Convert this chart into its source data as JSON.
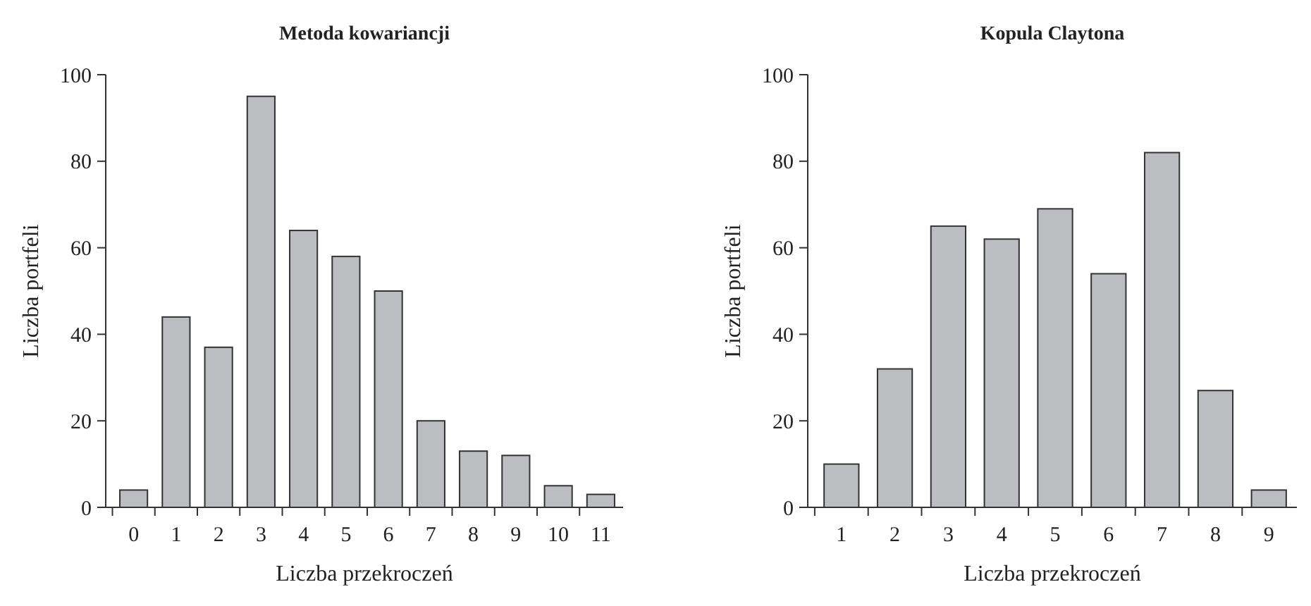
{
  "chart_data": [
    {
      "type": "bar",
      "title": "Metoda kowariancji",
      "xlabel": "Liczba przekroczeń",
      "ylabel": "Liczba portfeli",
      "categories": [
        "0",
        "1",
        "2",
        "3",
        "4",
        "5",
        "6",
        "7",
        "8",
        "9",
        "10",
        "11"
      ],
      "values": [
        4,
        44,
        37,
        95,
        64,
        58,
        50,
        20,
        13,
        12,
        5,
        3
      ],
      "color": "#bcbdc1",
      "ylim": [
        0,
        100
      ],
      "yticks": [
        0,
        20,
        40,
        60,
        80,
        100
      ],
      "grid": false
    },
    {
      "type": "bar",
      "title": "Kopula Claytona",
      "xlabel": "Liczba przekroczeń",
      "ylabel": "Liczba portfeli",
      "categories": [
        "1",
        "2",
        "3",
        "4",
        "5",
        "6",
        "7",
        "8",
        "9"
      ],
      "values": [
        10,
        32,
        65,
        62,
        69,
        54,
        82,
        27,
        4
      ],
      "color": "#bcbdc1",
      "ylim": [
        0,
        100
      ],
      "yticks": [
        0,
        20,
        40,
        60,
        80,
        100
      ],
      "grid": false
    }
  ]
}
